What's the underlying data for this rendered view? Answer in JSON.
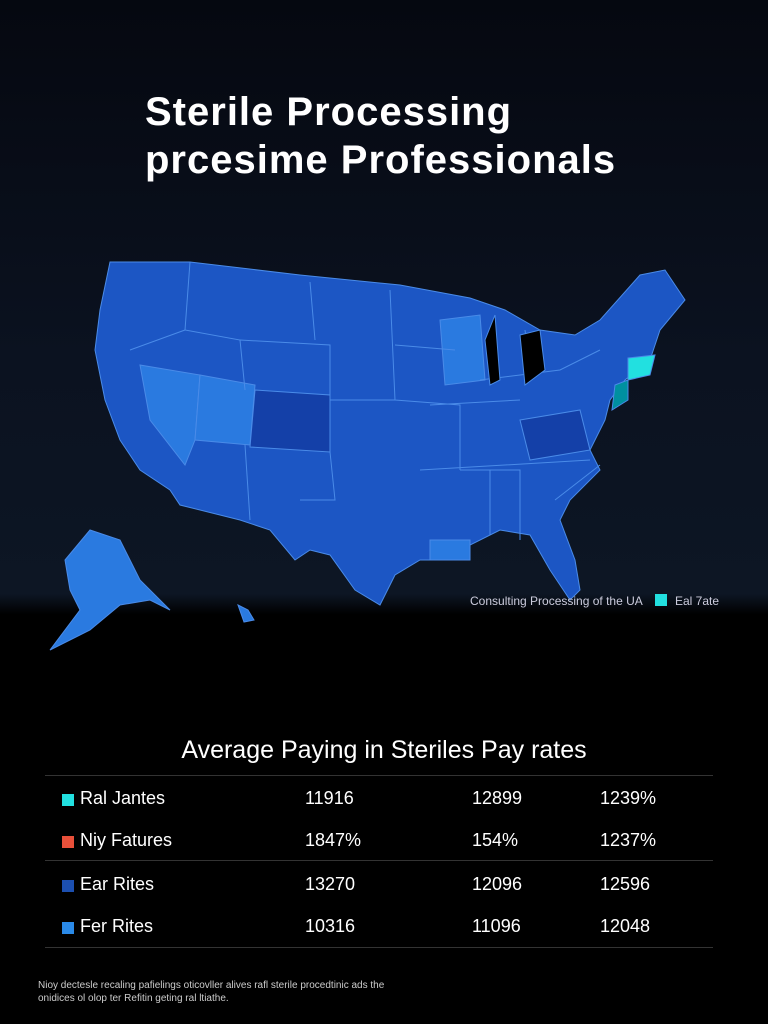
{
  "header": {
    "title_lines": [
      "Sterile  Processing",
      "prcesime Professionals"
    ]
  },
  "map": {
    "caption": "Consulting Processing of the UA",
    "legend_label": "Eal 7ate"
  },
  "table": {
    "title": "Average Paying in Steriles Pay rates",
    "rows": [
      [
        "Ral Jantes",
        "11916",
        "12899",
        "1239%"
      ],
      [
        "Niy Fatures",
        "1847%",
        "154%",
        "1237%"
      ],
      [
        "Ear Rites",
        "13270",
        "12096",
        "12596"
      ],
      [
        "Fer Rites",
        "10316",
        "11096",
        "12048"
      ]
    ]
  },
  "footnote": [
    "Nioy dectesle recaling pafielings oticovller alives rafl sterile procedtinic ads the",
    "onidices ol olop ter Refitin geting ral ltiathe."
  ]
}
